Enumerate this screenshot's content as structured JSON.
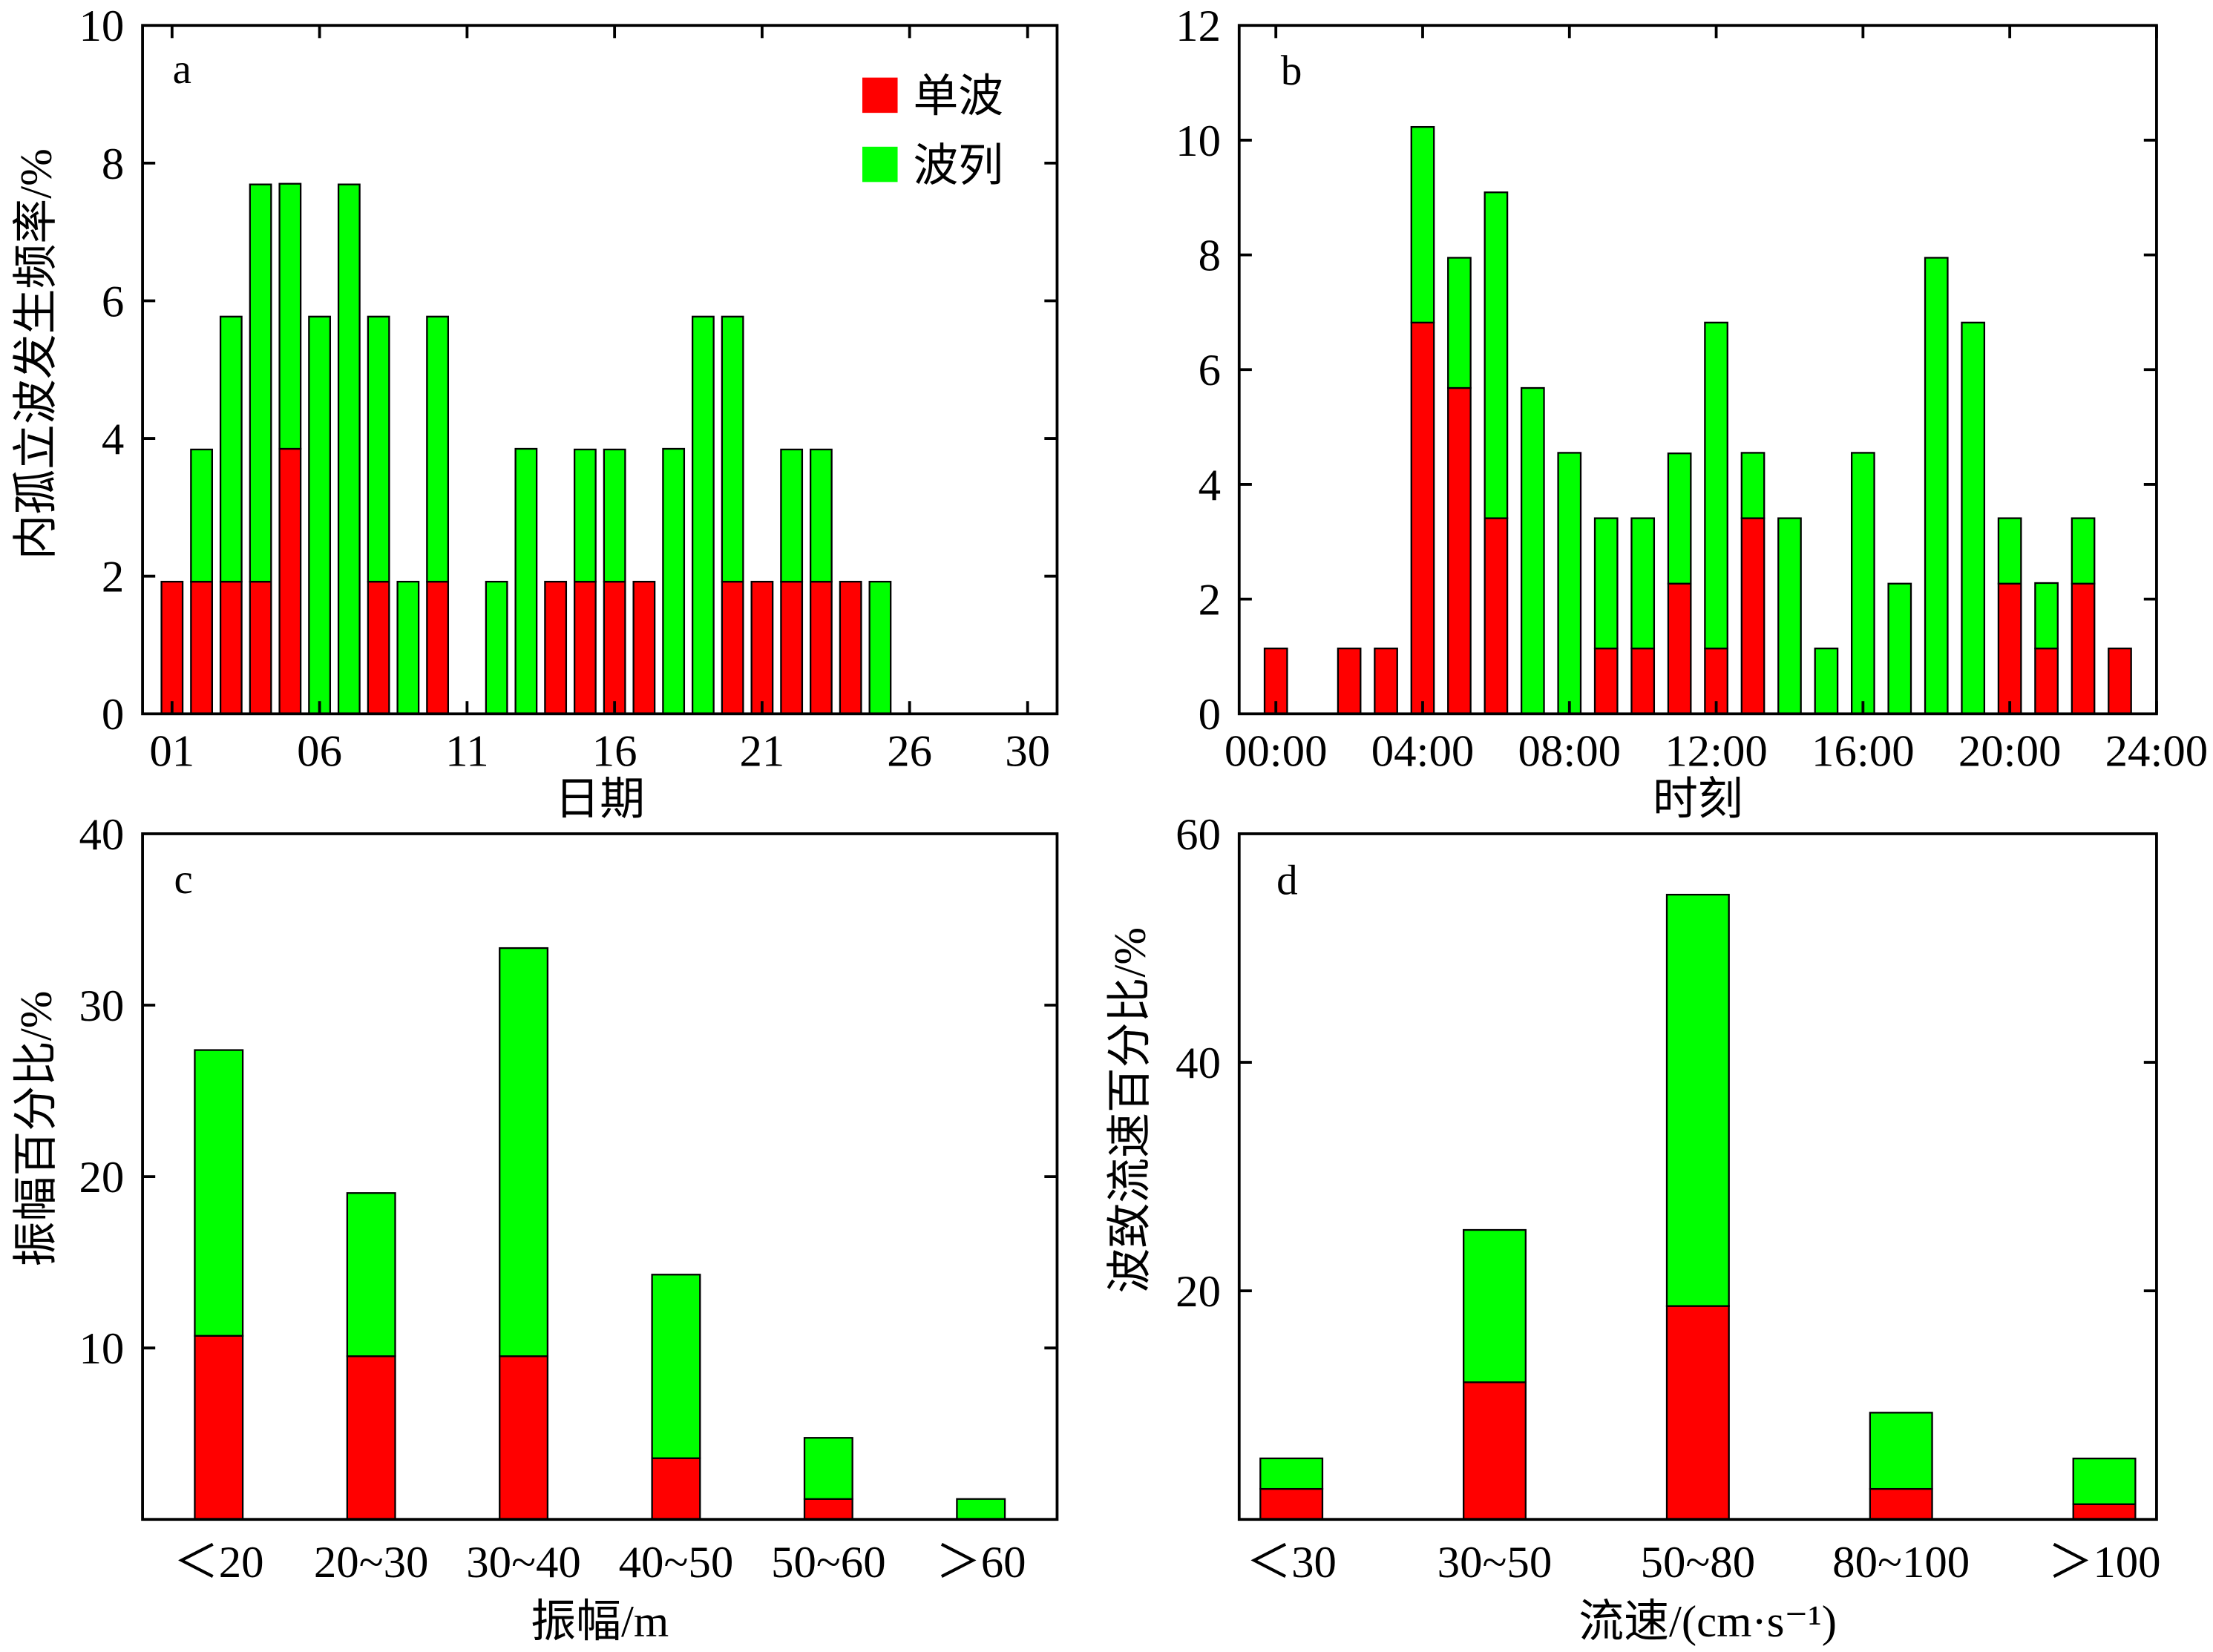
{
  "chart_data": [
    {
      "panel_label": "a",
      "type": "bar",
      "stacked": true,
      "xlabel": "日期",
      "ylabel": "内孤立波发生频率/%",
      "x": [
        1,
        2,
        3,
        4,
        5,
        6,
        7,
        8,
        9,
        10,
        11,
        12,
        13,
        14,
        15,
        16,
        17,
        18,
        19,
        20,
        21,
        22,
        23,
        24,
        25
      ],
      "xlim": [
        0,
        31
      ],
      "x_ticks": {
        "values": [
          1,
          6,
          11,
          16,
          21,
          26,
          30
        ],
        "labels": [
          "01",
          "06",
          "11",
          "16",
          "21",
          "26",
          "30"
        ]
      },
      "ylim": [
        0,
        10
      ],
      "y_ticks": {
        "values": [
          0,
          2,
          4,
          6,
          8,
          10
        ],
        "labels": [
          "0",
          "2",
          "4",
          "6",
          "8",
          "10"
        ]
      },
      "grid": false,
      "legend": {
        "placement": "top-right"
      },
      "series": [
        {
          "name": "单波",
          "color": "#ff0000",
          "values": [
            1.92,
            1.92,
            1.92,
            1.92,
            3.85,
            0,
            0,
            1.92,
            0,
            1.92,
            0,
            0,
            0,
            1.92,
            1.92,
            1.92,
            1.92,
            0,
            0,
            1.92,
            1.92,
            1.92,
            1.92,
            1.92,
            0
          ]
        },
        {
          "name": "波列",
          "color": "#00ff00",
          "values": [
            0,
            1.92,
            3.85,
            5.77,
            3.85,
            5.77,
            7.69,
            3.85,
            1.92,
            3.85,
            0,
            1.92,
            3.85,
            0,
            1.92,
            1.92,
            0,
            3.85,
            5.77,
            3.85,
            0,
            1.92,
            1.92,
            0,
            1.92
          ]
        }
      ]
    },
    {
      "panel_label": "b",
      "type": "bar",
      "stacked": true,
      "xlabel": "时刻",
      "x": [
        0,
        1,
        2,
        3,
        4,
        5,
        6,
        7,
        8,
        9,
        10,
        11,
        12,
        13,
        14,
        15,
        16,
        17,
        18,
        19,
        20,
        21,
        22,
        23
      ],
      "xlim": [
        -1,
        24
      ],
      "x_ticks": {
        "values": [
          0,
          4,
          8,
          12,
          16,
          20,
          24
        ],
        "labels": [
          "00:00",
          "04:00",
          "08:00",
          "12:00",
          "16:00",
          "20:00",
          "24:00"
        ]
      },
      "ylim": [
        0,
        12
      ],
      "y_ticks": {
        "values": [
          0,
          2,
          4,
          6,
          8,
          10,
          12
        ],
        "labels": [
          "0",
          "2",
          "4",
          "6",
          "8",
          "10",
          "12"
        ]
      },
      "grid": false,
      "series": [
        {
          "name": "单波",
          "color": "#ff0000",
          "values": [
            1.14,
            0,
            1.14,
            1.14,
            6.82,
            5.68,
            3.41,
            0,
            0,
            1.14,
            1.14,
            2.27,
            1.14,
            3.41,
            0,
            0,
            0,
            0,
            0,
            0,
            2.27,
            1.14,
            2.27,
            1.14
          ]
        },
        {
          "name": "波列",
          "color": "#00ff00",
          "values": [
            0,
            0,
            0,
            0,
            3.41,
            2.27,
            5.68,
            5.68,
            4.55,
            2.27,
            2.27,
            2.27,
            5.68,
            1.14,
            3.41,
            1.14,
            4.55,
            2.27,
            7.95,
            6.82,
            1.14,
            1.14,
            1.14,
            0
          ]
        }
      ]
    },
    {
      "panel_label": "c",
      "type": "bar",
      "stacked": true,
      "xlabel": "振幅/m",
      "ylabel": "振幅百分比/%",
      "categories": [
        "＜20",
        "20~30",
        "30~40",
        "40~50",
        "50~60",
        "＞60"
      ],
      "ylim": [
        0,
        40
      ],
      "y_ticks": {
        "values": [
          10,
          20,
          30,
          40
        ],
        "labels": [
          "10",
          "20",
          "30",
          "40"
        ]
      },
      "grid": false,
      "series": [
        {
          "name": "单波",
          "color": "#ff0000",
          "values": [
            10.71,
            9.52,
            9.52,
            3.57,
            1.19,
            0
          ]
        },
        {
          "name": "波列",
          "color": "#00ff00",
          "values": [
            16.67,
            9.52,
            23.81,
            10.71,
            3.57,
            1.19
          ]
        }
      ]
    },
    {
      "panel_label": "d",
      "type": "bar",
      "stacked": true,
      "xlabel": "流速/(cm·s⁻¹)",
      "ylabel": "波致流速百分比/%",
      "categories": [
        "＜30",
        "30~50",
        "50~80",
        "80~100",
        "＞100"
      ],
      "ylim": [
        0,
        60
      ],
      "y_ticks": {
        "values": [
          20,
          40,
          60
        ],
        "labels": [
          "20",
          "40",
          "60"
        ]
      },
      "grid": false,
      "series": [
        {
          "name": "单波",
          "color": "#ff0000",
          "values": [
            2.67,
            12.0,
            18.67,
            2.67,
            1.33
          ]
        },
        {
          "name": "波列",
          "color": "#00ff00",
          "values": [
            2.67,
            13.33,
            36.0,
            6.67,
            4.0
          ]
        }
      ]
    }
  ]
}
